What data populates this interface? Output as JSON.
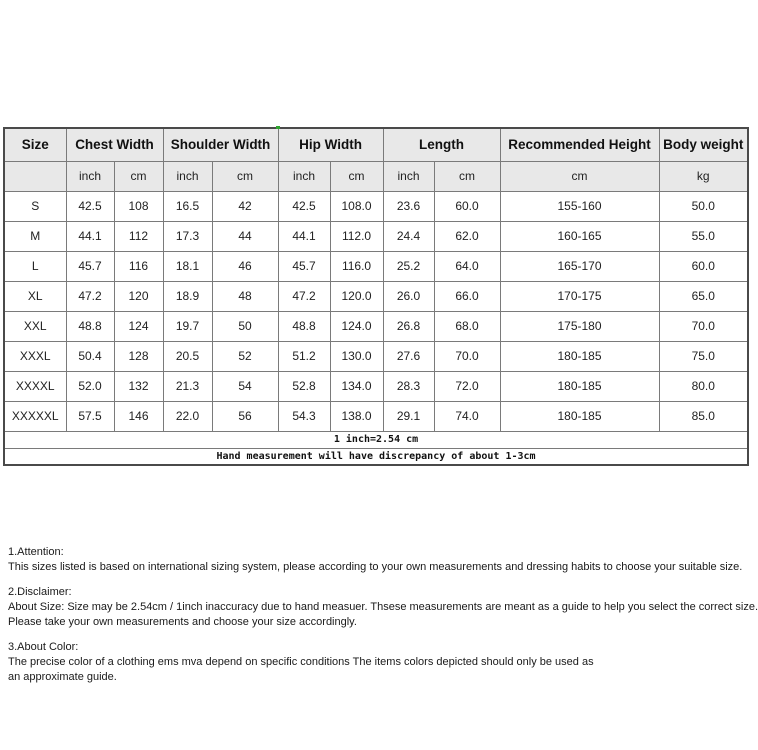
{
  "table": {
    "header_groups": {
      "size": "Size",
      "chest": "Chest Width",
      "shoulder": "Shoulder Width",
      "hip": "Hip Width",
      "length": "Length",
      "height": "Recommended Height",
      "weight": "Body weight"
    },
    "subheader": [
      "",
      "inch",
      "cm",
      "inch",
      "cm",
      "inch",
      "cm",
      "inch",
      "cm",
      "cm",
      "kg"
    ],
    "rows": [
      [
        "S",
        "42.5",
        "108",
        "16.5",
        "42",
        "42.5",
        "108.0",
        "23.6",
        "60.0",
        "155-160",
        "50.0"
      ],
      [
        "M",
        "44.1",
        "112",
        "17.3",
        "44",
        "44.1",
        "112.0",
        "24.4",
        "62.0",
        "160-165",
        "55.0"
      ],
      [
        "L",
        "45.7",
        "116",
        "18.1",
        "46",
        "45.7",
        "116.0",
        "25.2",
        "64.0",
        "165-170",
        "60.0"
      ],
      [
        "XL",
        "47.2",
        "120",
        "18.9",
        "48",
        "47.2",
        "120.0",
        "26.0",
        "66.0",
        "170-175",
        "65.0"
      ],
      [
        "XXL",
        "48.8",
        "124",
        "19.7",
        "50",
        "48.8",
        "124.0",
        "26.8",
        "68.0",
        "175-180",
        "70.0"
      ],
      [
        "XXXL",
        "50.4",
        "128",
        "20.5",
        "52",
        "51.2",
        "130.0",
        "27.6",
        "70.0",
        "180-185",
        "75.0"
      ],
      [
        "XXXXL",
        "52.0",
        "132",
        "21.3",
        "54",
        "52.8",
        "134.0",
        "28.3",
        "72.0",
        "180-185",
        "80.0"
      ],
      [
        "XXXXXL",
        "57.5",
        "146",
        "22.0",
        "56",
        "54.3",
        "138.0",
        "29.1",
        "74.0",
        "180-185",
        "85.0"
      ]
    ],
    "footnotes": [
      "1 inch=2.54 cm",
      "Hand measurement will have discrepancy of about 1-3cm"
    ]
  },
  "notes": [
    {
      "title": "1.Attention:",
      "lines": [
        "This sizes listed is based on international sizing system, please according to your own measurements and dressing habits to choose your suitable size."
      ]
    },
    {
      "title": "2.Disclaimer:",
      "lines": [
        "About Size: Size may be 2.54cm / 1inch inaccuracy due to hand measuer. Thsese measurements are meant as a guide to help you select the correct size.",
        "Please take your own measurements and choose your size accordingly."
      ]
    },
    {
      "title": "3.About Color:",
      "lines": [
        "The precise color of a clothing ems mva depend on specific conditions The items colors depicted should only be used as",
        "an approximate guide."
      ]
    }
  ],
  "colors": {
    "header_bg": "#e8e8e8",
    "grid_border": "#7a7a7a",
    "outer_border": "#4a4a4a",
    "artifact_green": "#2fa42f"
  }
}
